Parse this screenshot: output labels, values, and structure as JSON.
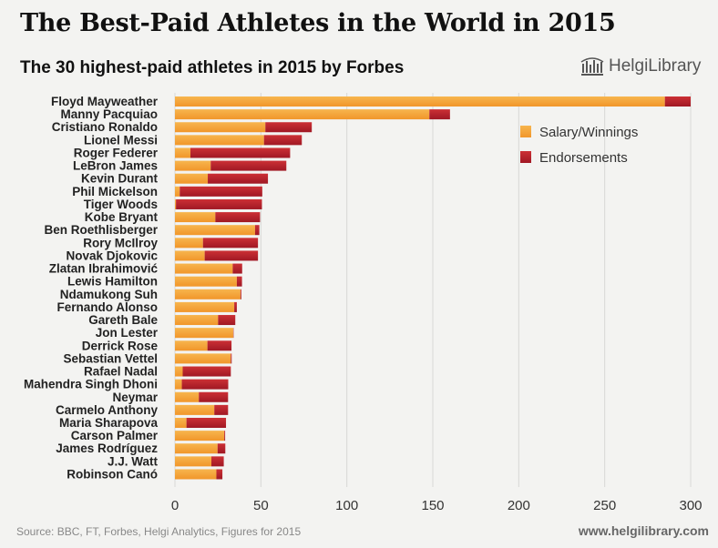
{
  "header": {
    "title": "The Best-Paid Athletes in the World in 2015",
    "subtitle": "The 30 highest-paid athletes in 2015 by Forbes",
    "logo_text": "HelgiLibrary"
  },
  "footer": {
    "source": "Source: BBC, FT, Forbes, Helgi Analytics, Figures for 2015",
    "website": "www.helgilibrary.com"
  },
  "colors": {
    "salary": "#f5a33a",
    "endorsements": "#b7202a"
  },
  "chart_data": {
    "type": "bar",
    "orientation": "horizontal",
    "stacked": true,
    "title": "The Best-Paid Athletes in the World in 2015",
    "subtitle": "The 30 highest-paid athletes in 2015 by Forbes",
    "categories": [
      "Floyd Mayweather",
      "Manny Pacquiao",
      "Cristiano Ronaldo",
      "Lionel Messi",
      "Roger Federer",
      "LeBron James",
      "Kevin Durant",
      "Phil Mickelson",
      "Tiger Woods",
      "Kobe Bryant",
      "Ben Roethlisberger",
      "Rory McIlroy",
      "Novak Djokovic",
      "Zlatan Ibrahimović",
      "Lewis Hamilton",
      "Ndamukong Suh",
      "Fernando Alonso",
      "Gareth Bale",
      "Jon Lester",
      "Derrick Rose",
      "Sebastian Vettel",
      "Rafael Nadal",
      "Mahendra Singh Dhoni",
      "Neymar",
      "Carmelo Anthony",
      "Maria Sharapova",
      "Carson Palmer",
      "James Rodríguez",
      "J.J. Watt",
      "Robinson Canó"
    ],
    "series": [
      {
        "name": "Salary/Winnings",
        "values": [
          285,
          148,
          52.6,
          51.8,
          9,
          20.8,
          19.1,
          2.8,
          0.6,
          23.5,
          46.6,
          16.3,
          17.3,
          33.6,
          36,
          38.1,
          34.5,
          25.1,
          33.9,
          18.9,
          32.5,
          4.5,
          4,
          13.9,
          22.9,
          6.7,
          28.7,
          24.8,
          21.2,
          24.1
        ],
        "color": "#f5a33a"
      },
      {
        "name": "Endorsements",
        "values": [
          15,
          12,
          27,
          22,
          58,
          44,
          35,
          48,
          50,
          26,
          2.5,
          32,
          31,
          5.5,
          3,
          0.5,
          1.5,
          10,
          0.2,
          14,
          0.5,
          28,
          27,
          17,
          8,
          23,
          0.5,
          4.5,
          7.2,
          3.5
        ],
        "color": "#b7202a"
      }
    ],
    "xlim": [
      0,
      300
    ],
    "xticks": [
      0,
      50,
      100,
      150,
      200,
      250,
      300
    ],
    "grid": true,
    "legend": "top-right"
  }
}
